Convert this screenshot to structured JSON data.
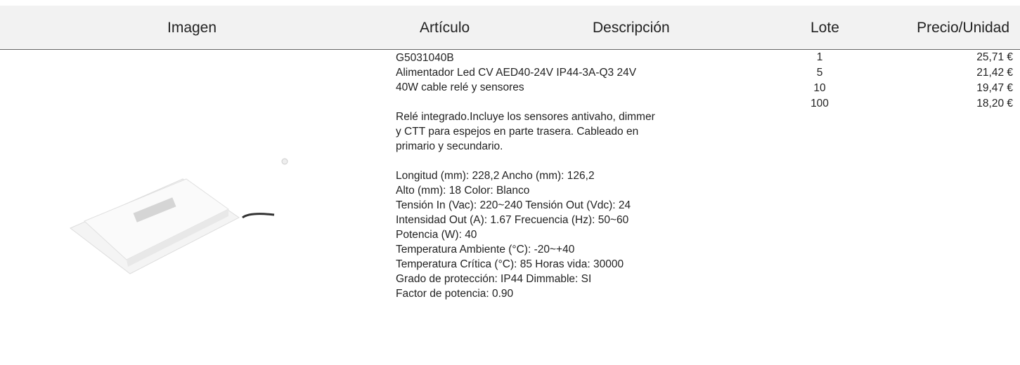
{
  "header": {
    "columns": [
      "Imagen",
      "Artículo",
      "Descripción",
      "Lote",
      "Precio/Unidad"
    ]
  },
  "item": {
    "code": "G5031040B",
    "name_lines": [
      "Alimentador Led CV AED40-24V IP44-3A-Q3 24V",
      "40W cable relé y sensores"
    ],
    "description_lines": [
      "Relé integrado.Incluye los sensores antivaho, dimmer",
      "y CTT para espejos en parte trasera. Cableado en",
      "primario y secundario."
    ],
    "spec_lines": [
      "Longitud (mm): 228,2 Ancho (mm): 126,2",
      "Alto (mm): 18 Color: Blanco",
      "Tensión In (Vac): 220~240 Tensión Out (Vdc): 24",
      "Intensidad Out (A): 1.67 Frecuencia (Hz): 50~60",
      "Potencia (W): 40",
      "Temperatura Ambiente (°C): -20~+40",
      "Temperatura Crítica (°C): 85 Horas vida: 30000",
      "Grado de protección: IP44 Dimmable: SI",
      "Factor de potencia: 0.90"
    ],
    "prices": [
      {
        "lot": "1",
        "price": "25,71 €"
      },
      {
        "lot": "5",
        "price": "21,42 €"
      },
      {
        "lot": "10",
        "price": "19,47 €"
      },
      {
        "lot": "100",
        "price": "18,20 €"
      }
    ]
  }
}
